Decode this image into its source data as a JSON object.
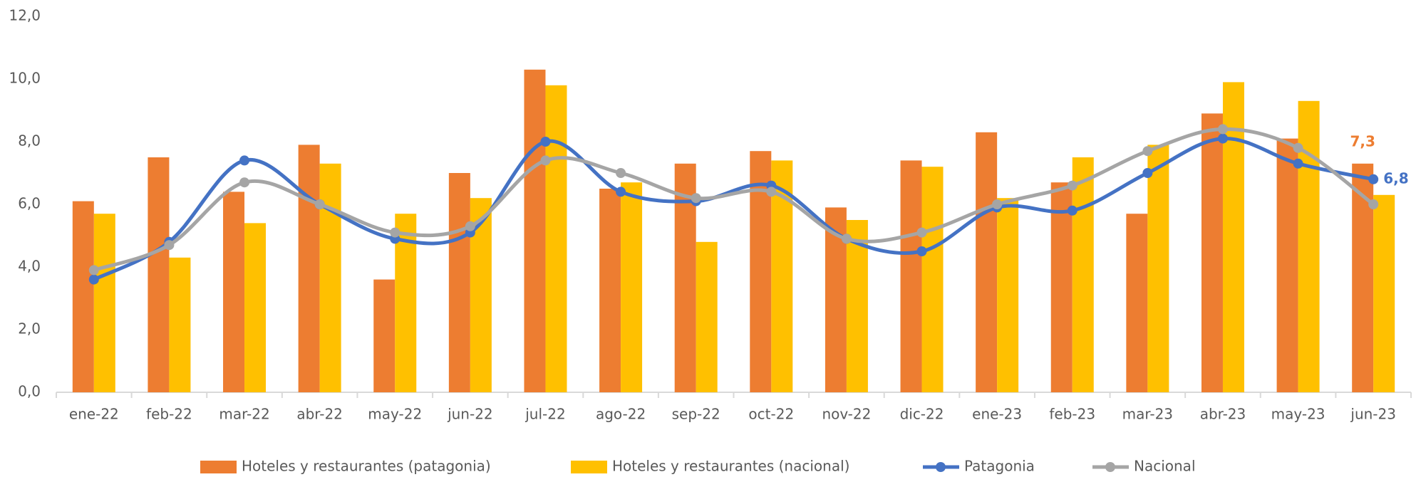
{
  "chart_data": {
    "type": "bar_line",
    "categories": [
      "ene-22",
      "feb-22",
      "mar-22",
      "abr-22",
      "may-22",
      "jun-22",
      "jul-22",
      "ago-22",
      "sep-22",
      "oct-22",
      "nov-22",
      "dic-22",
      "ene-23",
      "feb-23",
      "mar-23",
      "abr-23",
      "may-23",
      "jun-23"
    ],
    "series": [
      {
        "name": "Hoteles y restaurantes (patagonia)",
        "type": "bar",
        "color": "#ed7d31",
        "values": [
          6.1,
          7.5,
          6.4,
          7.9,
          3.6,
          7.0,
          10.3,
          6.5,
          7.3,
          7.7,
          5.9,
          7.4,
          8.3,
          6.7,
          5.7,
          8.9,
          8.1,
          7.3
        ],
        "value_labels": [
          null,
          null,
          null,
          null,
          null,
          null,
          null,
          null,
          null,
          null,
          null,
          null,
          null,
          null,
          null,
          null,
          null,
          "7,3"
        ]
      },
      {
        "name": "Hoteles y restaurantes (nacional)",
        "type": "bar",
        "color": "#ffc000",
        "values": [
          5.7,
          4.3,
          5.4,
          7.3,
          5.7,
          6.2,
          9.8,
          6.7,
          4.8,
          7.4,
          5.5,
          7.2,
          6.2,
          7.5,
          7.9,
          9.9,
          9.3,
          6.3
        ]
      },
      {
        "name": "Patagonia",
        "type": "line",
        "color": "#4472c4",
        "values": [
          3.6,
          4.8,
          7.4,
          6.0,
          4.9,
          5.1,
          8.0,
          6.4,
          6.1,
          6.6,
          4.9,
          4.5,
          5.9,
          5.8,
          7.0,
          8.1,
          7.3,
          6.8
        ],
        "value_labels": [
          null,
          null,
          null,
          null,
          null,
          null,
          null,
          null,
          null,
          null,
          null,
          null,
          null,
          null,
          null,
          null,
          null,
          "6,8"
        ]
      },
      {
        "name": "Nacional",
        "type": "line",
        "color": "#a5a5a5",
        "values": [
          3.9,
          4.7,
          6.7,
          6.0,
          5.1,
          5.3,
          7.4,
          7.0,
          6.2,
          6.4,
          4.9,
          5.1,
          6.0,
          6.6,
          7.7,
          8.4,
          7.8,
          6.0
        ]
      }
    ],
    "ylim": [
      0,
      12
    ],
    "yticks": [
      {
        "value": 0,
        "label": "0,0"
      },
      {
        "value": 2,
        "label": "2,0"
      },
      {
        "value": 4,
        "label": "4,0"
      },
      {
        "value": 6,
        "label": "6,0"
      },
      {
        "value": 8,
        "label": "8,0"
      },
      {
        "value": 10,
        "label": "10,0"
      },
      {
        "value": 12,
        "label": "12,0"
      }
    ],
    "legend": "bottom"
  }
}
